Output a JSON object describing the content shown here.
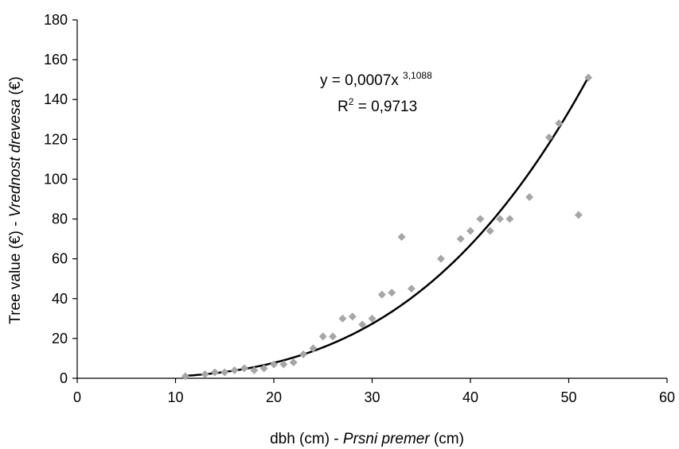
{
  "chart_data": {
    "type": "scatter",
    "title": "",
    "xlabel": {
      "plain": "dbh (cm) - ",
      "italic": "Prsni premer",
      "unit": " (cm)"
    },
    "ylabel": {
      "plain": "Tree value (€) - ",
      "italic": "Vrednost drevesa",
      "unit": " (€)"
    },
    "xlim": [
      0,
      60
    ],
    "ylim": [
      0,
      180
    ],
    "xticks": [
      0,
      10,
      20,
      30,
      40,
      50,
      60
    ],
    "yticks": [
      0,
      20,
      40,
      60,
      80,
      100,
      120,
      140,
      160,
      180
    ],
    "grid": false,
    "legend": "none",
    "points": {
      "x": [
        11,
        13,
        14,
        15,
        16,
        17,
        18,
        19,
        20,
        21,
        22,
        23,
        24,
        25,
        26,
        27,
        28,
        29,
        30,
        31,
        32,
        33,
        34,
        37,
        39,
        40,
        41,
        42,
        43,
        44,
        46,
        48,
        49,
        51,
        52
      ],
      "y": [
        1,
        2,
        3,
        3,
        4,
        5,
        4,
        5,
        7,
        7,
        8,
        12,
        15,
        21,
        21,
        30,
        31,
        27,
        30,
        42,
        43,
        71,
        45,
        60,
        70,
        74,
        80,
        74,
        80,
        80,
        91,
        121,
        128,
        82,
        151
      ],
      "color": "#a6a6a6"
    },
    "trendline": {
      "type": "power",
      "a": 0.0007,
      "b": 3.1088,
      "x_range": [
        11,
        52
      ],
      "color": "#000000"
    },
    "annotations": {
      "equation_prefix": "y = 0,0007x ",
      "equation_exponent": "3,1088",
      "r2_prefix": "R",
      "r2_exponent": "2",
      "r2_suffix": " = 0,9713"
    }
  }
}
